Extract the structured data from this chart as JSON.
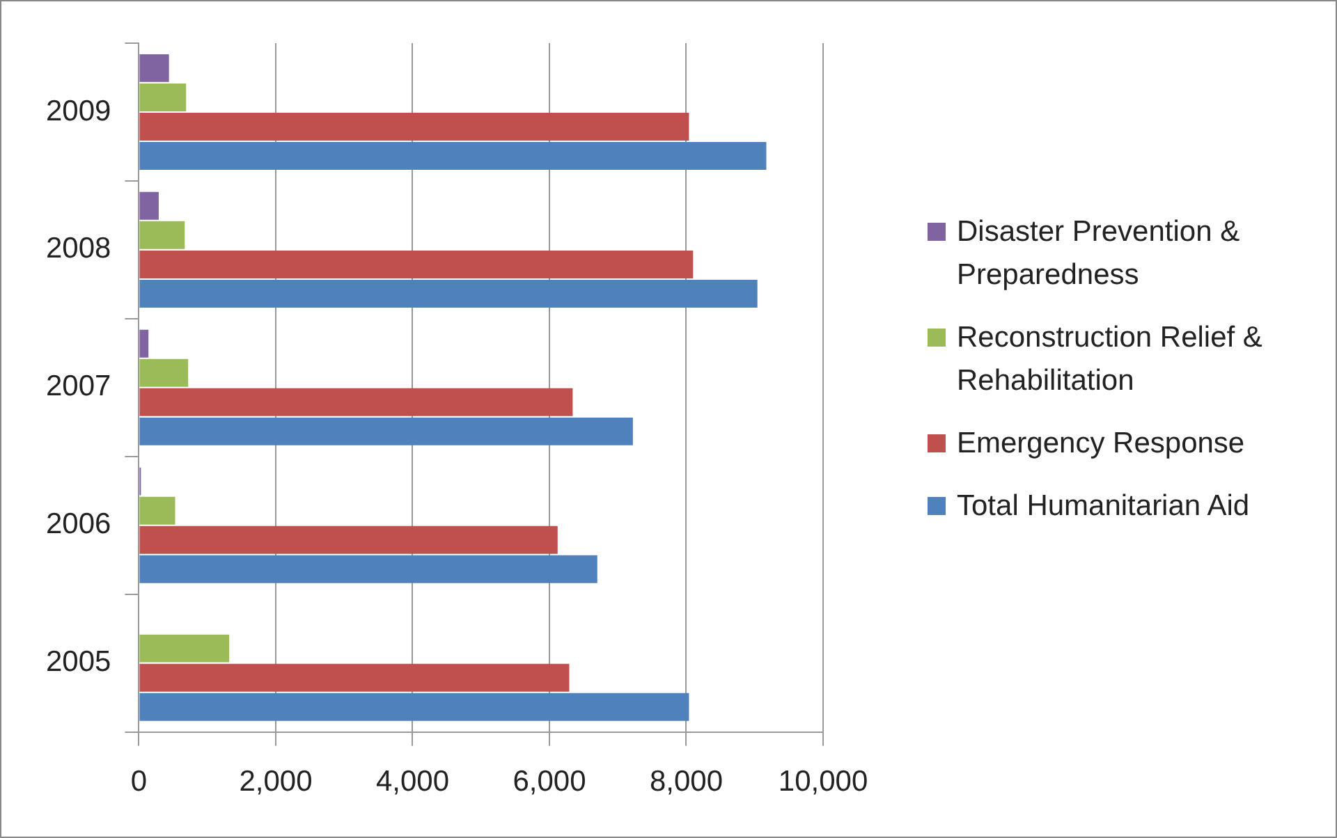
{
  "chart_data": {
    "type": "bar",
    "orientation": "horizontal",
    "categories": [
      "2009",
      "2008",
      "2007",
      "2006",
      "2005"
    ],
    "series": [
      {
        "name": "Disaster Prevention & Preparedness",
        "color": "#8064a2",
        "values": [
          440,
          290,
          140,
          30,
          0
        ]
      },
      {
        "name": "Reconstruction Relief & Rehabilitation",
        "color": "#9bbb59",
        "values": [
          690,
          670,
          720,
          530,
          1320
        ]
      },
      {
        "name": "Emergency Response",
        "color": "#c0504d",
        "values": [
          8040,
          8100,
          6340,
          6120,
          6290
        ]
      },
      {
        "name": "Total Humanitarian Aid",
        "color": "#4f81bd",
        "values": [
          9170,
          9040,
          7220,
          6700,
          8040
        ]
      }
    ],
    "xlim": [
      0,
      10000
    ],
    "xticks": [
      {
        "value": 0,
        "label": "0"
      },
      {
        "value": 2000,
        "label": "2,000"
      },
      {
        "value": 4000,
        "label": "4,000"
      },
      {
        "value": 6000,
        "label": "6,000"
      },
      {
        "value": 8000,
        "label": "8,000"
      },
      {
        "value": 10000,
        "label": "10,000"
      }
    ],
    "grid": "x",
    "legend": "right"
  }
}
